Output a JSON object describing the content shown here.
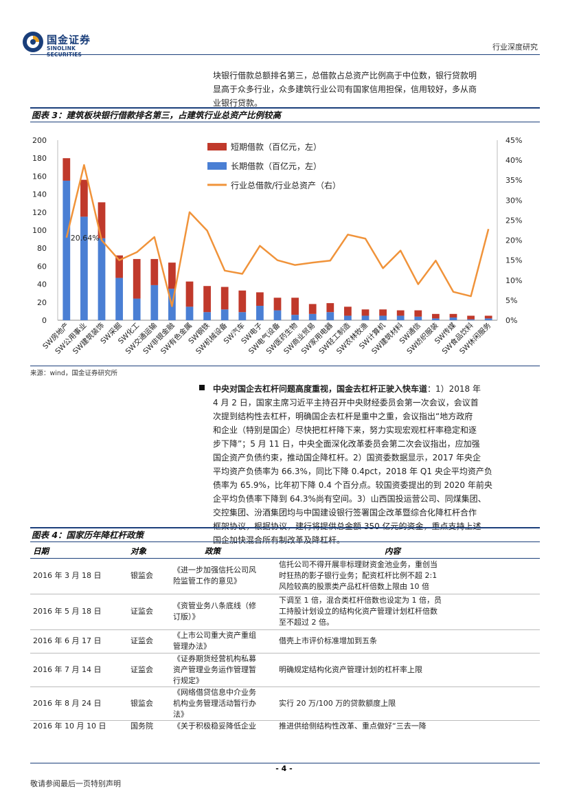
{
  "header": {
    "logo_cn": "国金证券",
    "logo_en": "SINOLINK SECURITIES",
    "section": "行业深度研究",
    "brand_color": "#1a3e7a"
  },
  "intro_paragraph": {
    "lines": [
      "块银行借款总额排名第三，总借款占总资产比例高于中位数，银行贷款明",
      "显高于众多行业，众多建筑行业公司有国家信用担保，信用较好，多从商",
      "业银行贷款。"
    ]
  },
  "figure3": {
    "title": "图表 3：建筑板块银行借款排名第三，占建筑行业总资产比例较高",
    "source": "来源：wind，国金证券研究所"
  },
  "chart_data": {
    "type": "bar",
    "stacked": true,
    "categories": [
      "SW房地产",
      "SW公用事业",
      "SW建筑装饰",
      "SW采掘",
      "SW化工",
      "SW交通运输",
      "SW非银金融",
      "SW有色金属",
      "SW钢铁",
      "SW机械设备",
      "SW汽车",
      "SW电子",
      "SW电气设备",
      "SW医药生物",
      "SW商业贸易",
      "SW家用电器",
      "SW轻工制造",
      "SW农林牧渔",
      "SW计算机",
      "SW建筑材料",
      "SW通信",
      "SW纺织服装",
      "SW传媒",
      "SW食品饮料",
      "SW休闲服务"
    ],
    "series": [
      {
        "name": "短期借款（百亿元，左）",
        "axis": "left",
        "color": "#c0392b",
        "values": [
          25,
          41,
          40,
          25,
          44,
          29,
          29,
          28,
          29,
          25,
          24,
          15,
          14,
          19,
          11,
          10,
          10,
          7,
          7,
          6,
          7,
          5,
          4,
          4,
          3
        ]
      },
      {
        "name": "长期借款（百亿元，左）",
        "axis": "left",
        "color": "#4a7fd4",
        "values": [
          155,
          115,
          91,
          47,
          24,
          39,
          35,
          15,
          9,
          12,
          9,
          16,
          11,
          6,
          7,
          9,
          5,
          5,
          5,
          5,
          4,
          2,
          3,
          1,
          2
        ]
      },
      {
        "name": "行业总借款/行业总资产（右）",
        "axis": "right",
        "type": "line",
        "color": "#f0933a",
        "values": [
          20.64,
          38.8,
          20.0,
          15.0,
          17.0,
          20.8,
          3.5,
          27.0,
          22.4,
          12.4,
          11.6,
          18.6,
          15.0,
          13.8,
          14.4,
          14.9,
          21.4,
          20.4,
          13.0,
          17.4,
          9.0,
          14.9,
          7.1,
          6.0,
          22.8
        ]
      }
    ],
    "ylim": [
      0,
      200
    ],
    "yticks": [
      0,
      20,
      40,
      60,
      80,
      100,
      120,
      140,
      160,
      180,
      200
    ],
    "y2lim": [
      0,
      45
    ],
    "y2ticks": [
      "0%",
      "5%",
      "10%",
      "15%",
      "20%",
      "25%",
      "30%",
      "35%",
      "40%",
      "45%"
    ],
    "annotation": "20.64%",
    "legend_position": "top-center",
    "grid": false
  },
  "bullet": {
    "lines": [
      {
        "bold": "中央对国企去杠杆问题高度重视，国金去杠杆正驶入快车道",
        "text": "：1）2018 年"
      },
      {
        "bold": "",
        "text": "4 月 2 日，国家主席习近平主持召开中央财经委员会第一次会议，会议首"
      },
      {
        "bold": "",
        "text": "次提到结构性去杠杆，明确国企去杠杆是重中之重，会议指出“地方政府"
      },
      {
        "bold": "",
        "text": "和企业（特别是国企）尽快把杠杆降下来，努力实现宏观杠杆率稳定和逐"
      },
      {
        "bold": "",
        "text": "步下降”；5 月 11 日，中央全面深化改革委员会第二次会议指出，应加强"
      },
      {
        "bold": "",
        "text": "国企资产负债约束，推动国企降杠杆。2）国资委数据显示，2017 年央企"
      },
      {
        "bold": "",
        "text": "平均资产负债率为 66.3%，同比下降 0.4pct，2018 年 Q1 央企平均资产负"
      },
      {
        "bold": "",
        "text": "债率为 65.9%，比年初下降 0.4 个百分点。较国资委提出的到 2020 年前央"
      },
      {
        "bold": "",
        "text": "企平均负债率下降到 64.3%尚有空间。3）山西国投运营公司、同煤集团、"
      },
      {
        "bold": "",
        "text": "交控集团、汾酒集团均与中国建设银行签署国企改革暨综合化降杠杆合作"
      },
      {
        "bold": "",
        "text": "框架协议，根据协议，建行将提供总金额 350 亿元的资金，重点支持上述"
      },
      {
        "bold": "",
        "text": "国企加快混合所有制改革及降杠杆。"
      }
    ]
  },
  "figure4": {
    "title": "图表 4：国家历年降杠杆政策",
    "columns": [
      "日期",
      "对象",
      "政策",
      "内容"
    ],
    "rows": [
      {
        "date": "2016 年 3 月 18 日",
        "org": "银监会",
        "policy": [
          "《进一步加强信托公司风",
          "险监管工作的意见》"
        ],
        "content": [
          "信托公司不得开展非标理财资金池业务，重创当",
          "时狂热的影子银行业务；配资杠杆比例不超 2:1",
          "风险较高的股票类产品杠杆倍数上限由 10 倍"
        ]
      },
      {
        "date": "2016 年 5 月 18 日",
        "org": "证监会",
        "policy": [
          "《资管业务八条底线（修",
          "订版）》"
        ],
        "content": [
          "下调至 1 倍，混合类杠杆倍数也设定为 1 倍，员",
          "工持股计划设立的结构化资产管理计划杠杆倍数",
          "至不超过 2 倍。"
        ]
      },
      {
        "date": "2016 年 6 月 17 日",
        "org": "证监会",
        "policy": [
          "《上市公司重大资产重组",
          "管理办法》"
        ],
        "content": [
          "借壳上市评价标准增加到五条"
        ]
      },
      {
        "date": "2016 年 7 月 14 日",
        "org": "证监会",
        "policy": [
          "《证券期货经营机构私募",
          "资产管理业务运作管理暂",
          "行规定》"
        ],
        "content": [
          "明确规定结构化资产管理计划的杠杆率上限"
        ]
      },
      {
        "date": "2016 年 8 月 24 日",
        "org": "银监会",
        "policy": [
          "《网络借贷信息中介业务",
          "机构业务管理活动暂行办",
          "法》"
        ],
        "content": [
          "实行 20 万/100 万的贷款额度上限"
        ]
      },
      {
        "date": "2016 年 10 月 10 日",
        "org": "国务院",
        "policy": [
          "《关于积极稳妥降低企业"
        ],
        "content": [
          "推进供给侧结构性改革、重点做好“三去一降"
        ]
      }
    ]
  },
  "footer": {
    "page": "- 4 -",
    "note": "敬请参阅最后一页特别声明"
  }
}
